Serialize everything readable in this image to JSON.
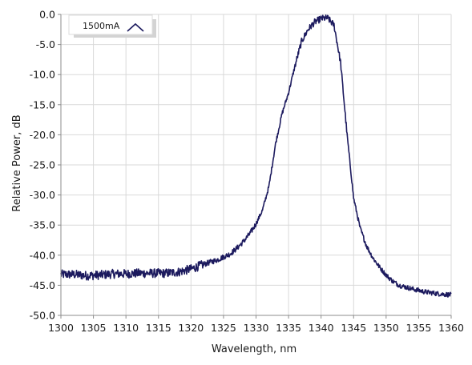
{
  "chart_data": {
    "type": "line",
    "title": "",
    "xlabel": "Wavelength, nm",
    "ylabel": "Relative Power, dB",
    "xlim": [
      1300,
      1360
    ],
    "ylim": [
      -50,
      0
    ],
    "x_ticks": [
      1300,
      1305,
      1310,
      1315,
      1320,
      1325,
      1330,
      1335,
      1340,
      1345,
      1350,
      1355,
      1360
    ],
    "y_ticks": [
      0,
      -5,
      -10,
      -15,
      -20,
      -25,
      -30,
      -35,
      -40,
      -45,
      -50
    ],
    "x_tick_labels": [
      "1300",
      "1305",
      "1310",
      "1315",
      "1320",
      "1325",
      "1330",
      "1335",
      "1340",
      "1345",
      "1350",
      "1355",
      "1360"
    ],
    "y_tick_labels": [
      "0.0",
      "-5.0",
      "-10.0",
      "-15.0",
      "-20.0",
      "-25.0",
      "-30.0",
      "-35.0",
      "-40.0",
      "-45.0",
      "-50.0"
    ],
    "grid": true,
    "legend_position": "top-left",
    "colors": {
      "series": "#1c1a5e",
      "grid": "#d9d9d9",
      "axis": "#8c8c8c"
    },
    "series": [
      {
        "name": "1500mA",
        "color": "#1c1a5e",
        "x": [
          1300,
          1302,
          1304,
          1306,
          1308,
          1310,
          1312,
          1314,
          1316,
          1318,
          1320,
          1322,
          1324,
          1326,
          1327,
          1328,
          1329,
          1330,
          1331,
          1332,
          1333,
          1334,
          1335,
          1336,
          1337,
          1338,
          1339,
          1340,
          1341,
          1342,
          1343,
          1344,
          1345,
          1346,
          1347,
          1348,
          1349,
          1350,
          1351,
          1352,
          1354,
          1356,
          1358,
          1360
        ],
        "y": [
          -43.2,
          -43.2,
          -43.4,
          -43.3,
          -43.1,
          -43.1,
          -43.0,
          -43.0,
          -43.0,
          -42.8,
          -42.3,
          -41.5,
          -40.8,
          -39.8,
          -38.9,
          -37.8,
          -36.5,
          -34.8,
          -32.5,
          -28.5,
          -21.5,
          -16.5,
          -13.0,
          -8.5,
          -4.5,
          -2.5,
          -1.3,
          -0.7,
          -0.6,
          -1.8,
          -8.0,
          -20.0,
          -30.5,
          -35.5,
          -38.5,
          -40.5,
          -42.0,
          -43.3,
          -44.3,
          -45.0,
          -45.6,
          -46.1,
          -46.4,
          -46.6
        ]
      }
    ]
  }
}
